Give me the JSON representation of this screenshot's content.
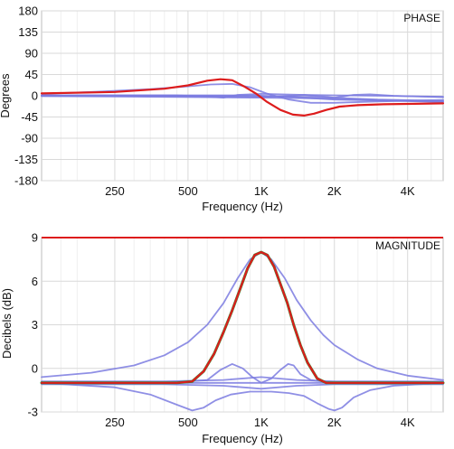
{
  "chart_data": [
    {
      "type": "line",
      "title": "PHASE",
      "xlabel": "Frequency (Hz)",
      "ylabel": "Degrees",
      "xscale": "log",
      "xlim": [
        125,
        5600
      ],
      "ylim": [
        -180,
        180
      ],
      "x_ticks": [
        250,
        500,
        1000,
        2000,
        4000
      ],
      "x_tick_labels": [
        "250",
        "500",
        "1K",
        "2K",
        "4K"
      ],
      "y_ticks": [
        180,
        135,
        90,
        45,
        0,
        -45,
        -90,
        -135,
        -180
      ],
      "y_tick_labels": [
        "180",
        "135",
        "90",
        "45",
        "0",
        "-45",
        "-90",
        "-135",
        "-180"
      ],
      "grid": true,
      "colors": {
        "component": "#7b7be0",
        "total": "#dd1c1c"
      },
      "series": [
        {
          "role": "component",
          "x": [
            125,
            200,
            350,
            500,
            620,
            760,
            900,
            1050,
            1300,
            1600,
            2000,
            3000,
            4500,
            5600
          ],
          "y": [
            4,
            8,
            14,
            20,
            24,
            25,
            18,
            5,
            -8,
            -15,
            -15,
            -12,
            -10,
            -9
          ]
        },
        {
          "role": "component",
          "x": [
            125,
            250,
            450,
            600,
            700,
            800,
            1000,
            1500,
            2000,
            3000,
            5600
          ],
          "y": [
            1,
            1,
            1,
            -2,
            -4,
            2,
            4,
            2,
            1,
            0,
            -2
          ]
        },
        {
          "role": "component",
          "x": [
            125,
            300,
            600,
            900,
            1100,
            1300,
            1500,
            1750,
            2000,
            2400,
            2800,
            3500,
            5600
          ],
          "y": [
            0,
            -1,
            -2,
            -3,
            -2,
            0,
            2,
            -1,
            -4,
            2,
            3,
            0,
            -3
          ]
        },
        {
          "role": "component",
          "x": [
            125,
            300,
            600,
            1000,
            1400,
            1800,
            2500,
            3500,
            5600
          ],
          "y": [
            -1,
            -2,
            -3,
            -4,
            -5,
            -6,
            -8,
            -10,
            -12
          ]
        },
        {
          "role": "component",
          "x": [
            125,
            400,
            800,
            1100,
            1400,
            1800,
            2200,
            3000,
            5600
          ],
          "y": [
            0,
            0,
            0,
            -1,
            -2,
            -3,
            -5,
            -8,
            -11
          ]
        },
        {
          "role": "component",
          "x": [
            125,
            400,
            900,
            1300,
            1700,
            2000,
            3000,
            5600
          ],
          "y": [
            1,
            1,
            1,
            -2,
            -6,
            -8,
            -10,
            -13
          ]
        },
        {
          "role": "total",
          "x": [
            125,
            250,
            400,
            500,
            600,
            680,
            760,
            850,
            950,
            1050,
            1200,
            1350,
            1500,
            1650,
            1850,
            2100,
            2500,
            3200,
            4300,
            5600
          ],
          "y": [
            5,
            8,
            15,
            22,
            32,
            35,
            33,
            20,
            5,
            -12,
            -30,
            -40,
            -42,
            -38,
            -30,
            -23,
            -20,
            -18,
            -17,
            -16
          ]
        }
      ]
    },
    {
      "type": "line",
      "title": "MAGNITUDE",
      "xlabel": "Frequency (Hz)",
      "ylabel": "Decibels (dB)",
      "xscale": "log",
      "xlim": [
        125,
        5600
      ],
      "ylim": [
        -3,
        9
      ],
      "x_ticks": [
        250,
        500,
        1000,
        2000,
        4000
      ],
      "x_tick_labels": [
        "250",
        "500",
        "1K",
        "2K",
        "4K"
      ],
      "y_ticks": [
        9,
        6,
        3,
        0,
        -3
      ],
      "y_tick_labels": [
        "9",
        "6",
        "3",
        "0",
        "-3"
      ],
      "grid": true,
      "colors": {
        "component": "#7b7be0",
        "total": "#dd1c1c",
        "reference": "#dd1c1c",
        "underlay": "#2a8a2a"
      },
      "reference_line": 9,
      "series": [
        {
          "role": "component",
          "x": [
            125,
            200,
            300,
            400,
            500,
            600,
            700,
            800,
            900,
            1000,
            1100,
            1250,
            1400,
            1600,
            1800,
            2000,
            2500,
            3000,
            4000,
            5600
          ],
          "y": [
            -0.6,
            -0.3,
            0.2,
            0.9,
            1.8,
            3.0,
            4.5,
            6.2,
            7.5,
            8.0,
            7.5,
            6.2,
            4.7,
            3.3,
            2.3,
            1.6,
            0.6,
            0.0,
            -0.5,
            -0.8
          ]
        },
        {
          "role": "component",
          "x": [
            125,
            400,
            600,
            680,
            760,
            840,
            920,
            1000,
            1100,
            1200,
            1290,
            1360,
            1450,
            1600,
            2000,
            5600
          ],
          "y": [
            -1.0,
            -1.0,
            -0.8,
            -0.1,
            0.3,
            0.0,
            -0.6,
            -1.0,
            -0.7,
            -0.1,
            0.3,
            0.2,
            -0.4,
            -0.8,
            -1.0,
            -1.0
          ]
        },
        {
          "role": "component",
          "x": [
            125,
            250,
            350,
            450,
            520,
            580,
            650,
            750,
            900,
            1100,
            1300,
            1500,
            1700,
            1900,
            2000,
            2150,
            2400,
            2800,
            3500,
            5600
          ],
          "y": [
            -1.0,
            -1.3,
            -1.8,
            -2.5,
            -2.9,
            -2.7,
            -2.2,
            -1.8,
            -1.6,
            -1.6,
            -1.7,
            -1.9,
            -2.4,
            -2.8,
            -2.9,
            -2.7,
            -2.0,
            -1.5,
            -1.2,
            -1.0
          ]
        },
        {
          "role": "component",
          "x": [
            125,
            400,
            700,
            1000,
            1400,
            2000,
            3000,
            5600
          ],
          "y": [
            -0.9,
            -0.9,
            -0.8,
            -0.6,
            -0.8,
            -0.9,
            -0.9,
            -0.9
          ]
        },
        {
          "role": "component",
          "x": [
            125,
            400,
            700,
            1000,
            1400,
            2000,
            3000,
            5600
          ],
          "y": [
            -1.1,
            -1.1,
            -1.2,
            -1.4,
            -1.2,
            -1.1,
            -1.1,
            -1.1
          ]
        },
        {
          "role": "component",
          "x": [
            125,
            500,
            1000,
            2000,
            5600
          ],
          "y": [
            -1.0,
            -1.0,
            -1.0,
            -1.0,
            -1.0
          ]
        },
        {
          "role": "total",
          "x": [
            125,
            450,
            520,
            580,
            640,
            700,
            760,
            820,
            880,
            940,
            1000,
            1060,
            1130,
            1200,
            1280,
            1360,
            1450,
            1550,
            1700,
            1850,
            2000,
            2500,
            5600
          ],
          "y": [
            -1.0,
            -1.0,
            -0.9,
            -0.2,
            1.0,
            2.5,
            4.0,
            5.5,
            6.9,
            7.8,
            8.0,
            7.8,
            7.0,
            5.8,
            4.5,
            3.0,
            1.6,
            0.4,
            -0.7,
            -1.0,
            -1.0,
            -1.0,
            -1.0
          ]
        }
      ]
    }
  ]
}
